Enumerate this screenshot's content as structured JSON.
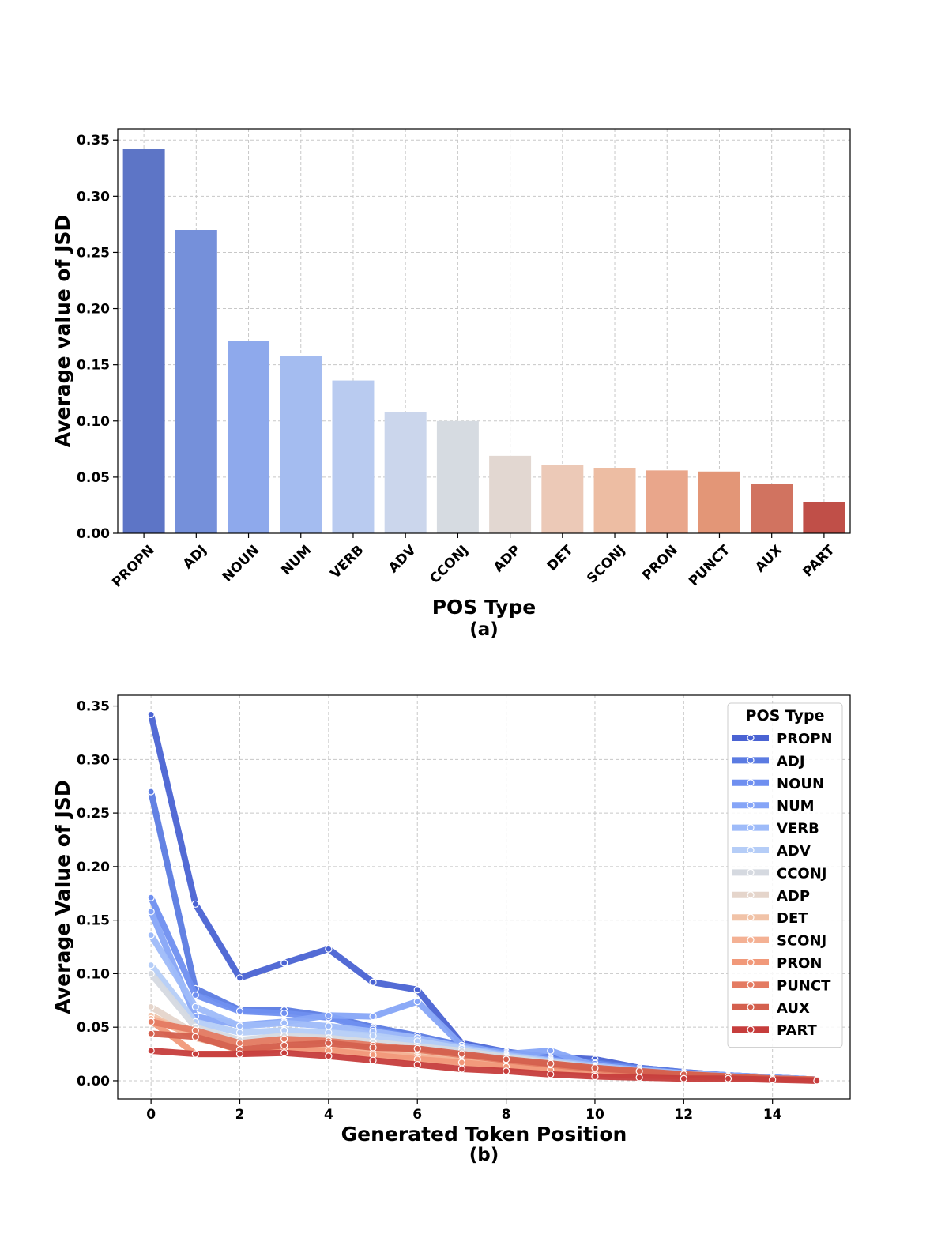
{
  "chart_data": [
    {
      "type": "bar",
      "title": "",
      "xlabel": "POS Type",
      "ylabel": "Average value of JSD",
      "caption": "(a)",
      "categories": [
        "PROPN",
        "ADJ",
        "NOUN",
        "NUM",
        "VERB",
        "ADV",
        "CCONJ",
        "ADP",
        "DET",
        "SCONJ",
        "PRON",
        "PUNCT",
        "AUX",
        "PART"
      ],
      "values": [
        0.342,
        0.27,
        0.171,
        0.158,
        0.136,
        0.108,
        0.1,
        0.069,
        0.061,
        0.058,
        0.056,
        0.055,
        0.044,
        0.028
      ],
      "colors": [
        "#5d75c6",
        "#7590da",
        "#8ea9ec",
        "#a4bcf0",
        "#b9cbf0",
        "#cbd6ec",
        "#d6dbe1",
        "#e2d7d1",
        "#ecc9b7",
        "#edbda3",
        "#e9a68b",
        "#e39677",
        "#d17360",
        "#c04f48"
      ],
      "ylim": [
        0,
        0.36
      ],
      "yticks": [
        "0.00",
        "0.05",
        "0.10",
        "0.15",
        "0.20",
        "0.25",
        "0.30",
        "0.35"
      ],
      "grid": true
    },
    {
      "type": "line",
      "title": "",
      "xlabel": "Generated Token Position",
      "ylabel": "Average Value of JSD",
      "caption": "(b)",
      "legend_title": "POS Type",
      "legend_position": "top-right",
      "x": [
        0,
        1,
        2,
        3,
        4,
        5,
        6,
        7,
        8,
        9,
        10,
        11,
        12,
        13,
        14,
        15
      ],
      "xticks": [
        "0",
        "2",
        "4",
        "6",
        "8",
        "10",
        "12",
        "14"
      ],
      "yticks": [
        "0.00",
        "0.05",
        "0.10",
        "0.15",
        "0.20",
        "0.25",
        "0.30",
        "0.35"
      ],
      "xlim": [
        -0.75,
        15.75
      ],
      "ylim": [
        -0.017,
        0.36
      ],
      "grid": true,
      "series": [
        {
          "name": "PROPN",
          "color": "#4a63d3",
          "values": [
            0.342,
            0.165,
            0.096,
            0.11,
            0.123,
            0.092,
            0.085,
            0.035,
            0.027,
            0.022,
            0.02,
            0.012,
            0.008,
            0.005,
            0.003,
            0.001
          ]
        },
        {
          "name": "ADJ",
          "color": "#5b7be2",
          "values": [
            0.27,
            0.086,
            0.066,
            0.066,
            0.06,
            0.05,
            0.042,
            0.033,
            0.027,
            0.021,
            0.017,
            0.012,
            0.008,
            0.005,
            0.003,
            0.001
          ]
        },
        {
          "name": "NOUN",
          "color": "#6f8ff0",
          "values": [
            0.171,
            0.08,
            0.065,
            0.063,
            0.059,
            0.048,
            0.04,
            0.032,
            0.026,
            0.02,
            0.016,
            0.011,
            0.007,
            0.005,
            0.003,
            0.001
          ]
        },
        {
          "name": "NUM",
          "color": "#86a5f7",
          "values": [
            0.158,
            0.06,
            0.052,
            0.055,
            0.061,
            0.06,
            0.074,
            0.033,
            0.025,
            0.028,
            0.014,
            0.01,
            0.007,
            0.005,
            0.003,
            0.001
          ]
        },
        {
          "name": "VERB",
          "color": "#9ebbf9",
          "values": [
            0.136,
            0.069,
            0.051,
            0.054,
            0.051,
            0.046,
            0.04,
            0.031,
            0.024,
            0.019,
            0.014,
            0.01,
            0.007,
            0.004,
            0.002,
            0.001
          ]
        },
        {
          "name": "ADV",
          "color": "#b5cdf7",
          "values": [
            0.108,
            0.055,
            0.045,
            0.047,
            0.045,
            0.042,
            0.037,
            0.03,
            0.023,
            0.018,
            0.013,
            0.009,
            0.006,
            0.004,
            0.002,
            0.001
          ]
        },
        {
          "name": "CCONJ",
          "color": "#d5d9e0",
          "values": [
            0.1,
            0.05,
            0.038,
            0.042,
            0.04,
            0.036,
            0.032,
            0.028,
            0.022,
            0.017,
            0.012,
            0.008,
            0.006,
            0.004,
            0.002,
            0.001
          ]
        },
        {
          "name": "ADP",
          "color": "#e5d5cb",
          "values": [
            0.069,
            0.044,
            0.033,
            0.037,
            0.034,
            0.03,
            0.026,
            0.022,
            0.018,
            0.014,
            0.01,
            0.007,
            0.005,
            0.003,
            0.002,
            0.001
          ]
        },
        {
          "name": "DET",
          "color": "#f1c3a8",
          "values": [
            0.061,
            0.04,
            0.03,
            0.034,
            0.032,
            0.028,
            0.024,
            0.02,
            0.016,
            0.012,
            0.009,
            0.006,
            0.004,
            0.003,
            0.002,
            0.001
          ]
        },
        {
          "name": "SCONJ",
          "color": "#f4b194",
          "values": [
            0.058,
            0.042,
            0.028,
            0.032,
            0.03,
            0.026,
            0.022,
            0.018,
            0.014,
            0.011,
            0.008,
            0.006,
            0.004,
            0.003,
            0.002,
            0.001
          ]
        },
        {
          "name": "PRON",
          "color": "#f1997a",
          "values": [
            0.056,
            0.025,
            0.025,
            0.03,
            0.028,
            0.024,
            0.02,
            0.017,
            0.013,
            0.01,
            0.007,
            0.005,
            0.004,
            0.003,
            0.002,
            0.001
          ]
        },
        {
          "name": "PUNCT",
          "color": "#e47b62",
          "values": [
            0.055,
            0.047,
            0.035,
            0.039,
            0.037,
            0.033,
            0.029,
            0.024,
            0.019,
            0.015,
            0.011,
            0.008,
            0.006,
            0.004,
            0.002,
            0.001
          ]
        },
        {
          "name": "AUX",
          "color": "#d4604e",
          "values": [
            0.044,
            0.041,
            0.029,
            0.033,
            0.035,
            0.031,
            0.03,
            0.025,
            0.02,
            0.016,
            0.012,
            0.009,
            0.006,
            0.004,
            0.002,
            0.001
          ]
        },
        {
          "name": "PART",
          "color": "#c63d3c",
          "values": [
            0.028,
            0.025,
            0.025,
            0.026,
            0.023,
            0.019,
            0.015,
            0.011,
            0.009,
            0.006,
            0.004,
            0.003,
            0.002,
            0.002,
            0.001,
            0.0
          ]
        }
      ]
    }
  ]
}
